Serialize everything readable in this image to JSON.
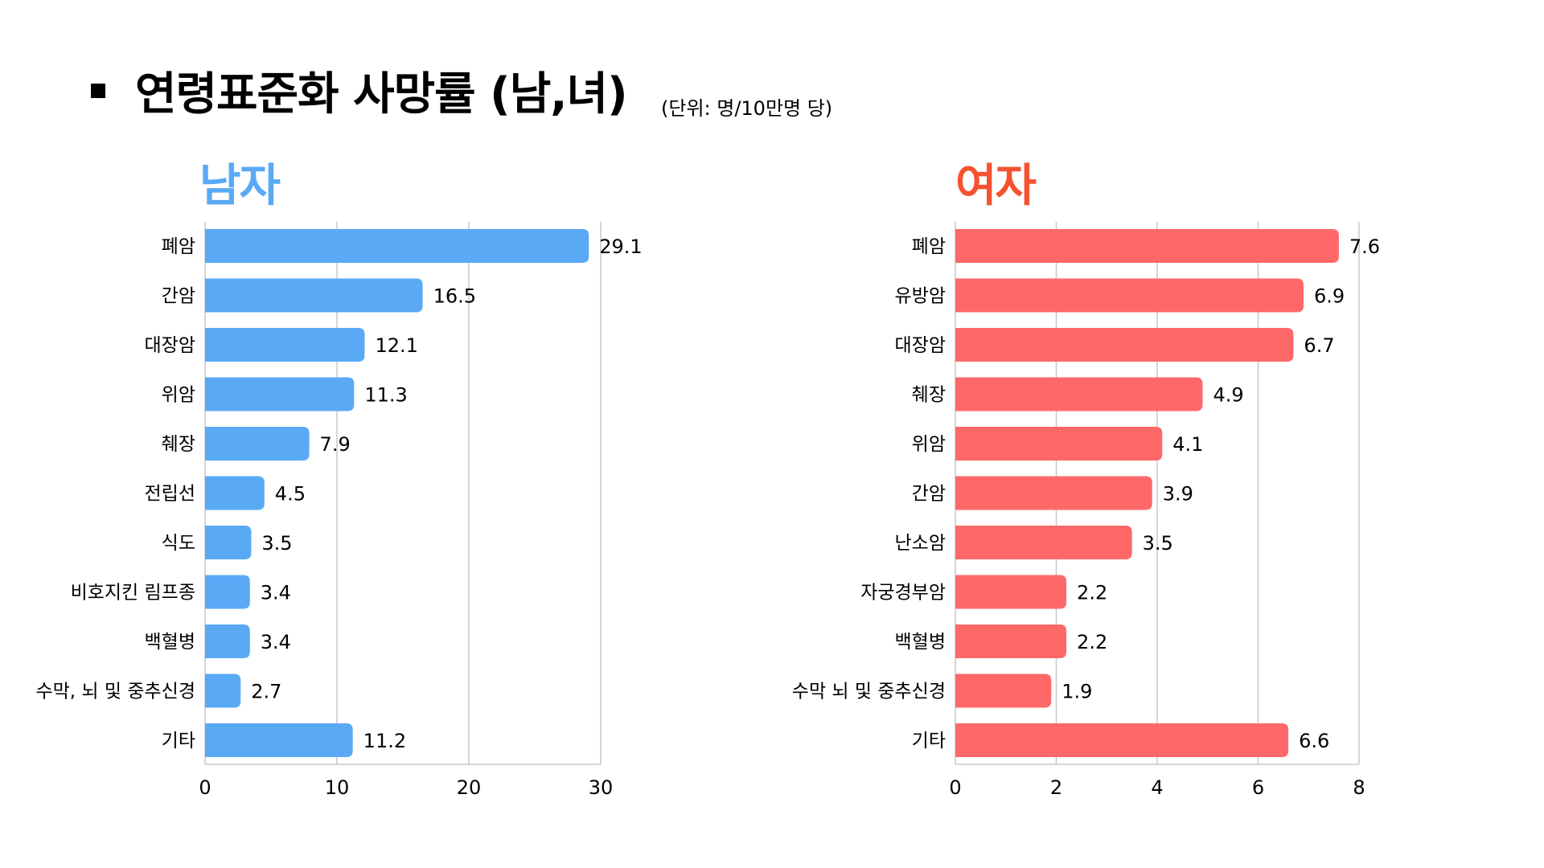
{
  "header": {
    "title": "연령표준화 사망률 (남,녀)",
    "subtitle": "(단위: 명/10만명 당)"
  },
  "chart_data": [
    {
      "type": "bar",
      "orientation": "horizontal",
      "title": "남자",
      "title_color": "#5AA9F5",
      "bar_color": "#5AA9F5",
      "categories": [
        "폐암",
        "간암",
        "대장암",
        "위암",
        "췌장",
        "전립선",
        "식도",
        "비호지킨 림프종",
        "백혈병",
        "수막, 뇌 및 중추신경",
        "기타"
      ],
      "values": [
        29.1,
        16.5,
        12.1,
        11.3,
        7.9,
        4.5,
        3.5,
        3.4,
        3.4,
        2.7,
        11.2
      ],
      "xlim": [
        0,
        30
      ],
      "xticks": [
        "0",
        "10",
        "20",
        "30"
      ],
      "grid": true
    },
    {
      "type": "bar",
      "orientation": "horizontal",
      "title": "여자",
      "title_color": "#F5522F",
      "bar_color": "#FF6868",
      "categories": [
        "폐암",
        "유방암",
        "대장암",
        "췌장",
        "위암",
        "간암",
        "난소암",
        "자궁경부암",
        "백혈병",
        "수막 뇌 및 중추신경",
        "기타"
      ],
      "values": [
        7.6,
        6.9,
        6.7,
        4.9,
        4.1,
        3.9,
        3.5,
        2.2,
        2.2,
        1.9,
        6.6
      ],
      "xlim": [
        0,
        8
      ],
      "xticks": [
        "0",
        "2",
        "4",
        "6",
        "8"
      ],
      "grid": true
    }
  ]
}
